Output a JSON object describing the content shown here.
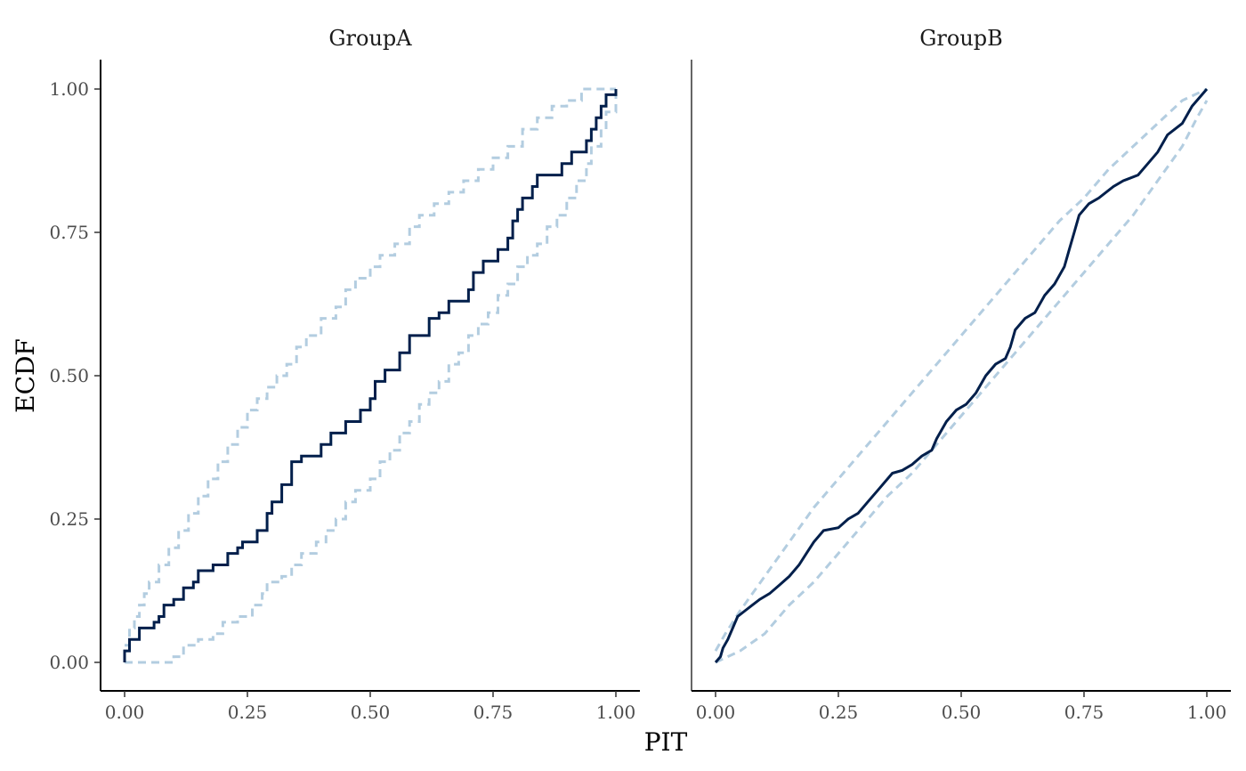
{
  "chart_data": {
    "type": "line",
    "xlabel": "PIT",
    "ylabel": "ECDF",
    "xlim": [
      0,
      1
    ],
    "ylim": [
      0,
      1
    ],
    "x_ticks": [
      "0.00",
      "0.25",
      "0.50",
      "0.75",
      "1.00"
    ],
    "y_ticks": [
      "0.00",
      "0.25",
      "0.50",
      "0.75",
      "1.00"
    ],
    "colors": {
      "ecdf": "#011f4b",
      "band": "#b3cde0"
    },
    "panels": [
      {
        "title": "GroupA",
        "series": [
          {
            "name": "ECDF",
            "step": true,
            "points": [
              [
                0,
                0
              ],
              [
                0,
                0.02
              ],
              [
                0.01,
                0.04
              ],
              [
                0.03,
                0.06
              ],
              [
                0.06,
                0.07
              ],
              [
                0.07,
                0.08
              ],
              [
                0.08,
                0.1
              ],
              [
                0.1,
                0.11
              ],
              [
                0.12,
                0.13
              ],
              [
                0.14,
                0.14
              ],
              [
                0.15,
                0.16
              ],
              [
                0.18,
                0.17
              ],
              [
                0.21,
                0.19
              ],
              [
                0.23,
                0.2
              ],
              [
                0.24,
                0.21
              ],
              [
                0.27,
                0.23
              ],
              [
                0.29,
                0.26
              ],
              [
                0.3,
                0.28
              ],
              [
                0.32,
                0.31
              ],
              [
                0.34,
                0.35
              ],
              [
                0.36,
                0.36
              ],
              [
                0.4,
                0.38
              ],
              [
                0.42,
                0.4
              ],
              [
                0.45,
                0.42
              ],
              [
                0.48,
                0.44
              ],
              [
                0.5,
                0.46
              ],
              [
                0.51,
                0.49
              ],
              [
                0.53,
                0.51
              ],
              [
                0.56,
                0.54
              ],
              [
                0.58,
                0.57
              ],
              [
                0.62,
                0.6
              ],
              [
                0.64,
                0.61
              ],
              [
                0.66,
                0.63
              ],
              [
                0.7,
                0.65
              ],
              [
                0.71,
                0.68
              ],
              [
                0.73,
                0.7
              ],
              [
                0.76,
                0.72
              ],
              [
                0.78,
                0.74
              ],
              [
                0.79,
                0.77
              ],
              [
                0.8,
                0.79
              ],
              [
                0.81,
                0.81
              ],
              [
                0.83,
                0.83
              ],
              [
                0.84,
                0.85
              ],
              [
                0.89,
                0.87
              ],
              [
                0.91,
                0.89
              ],
              [
                0.94,
                0.91
              ],
              [
                0.95,
                0.93
              ],
              [
                0.96,
                0.95
              ],
              [
                0.97,
                0.97
              ],
              [
                0.98,
                0.99
              ],
              [
                1,
                1
              ]
            ]
          },
          {
            "name": "upper",
            "step": true,
            "points": [
              [
                0,
                0.03
              ],
              [
                0.01,
                0.06
              ],
              [
                0.02,
                0.08
              ],
              [
                0.03,
                0.1
              ],
              [
                0.04,
                0.12
              ],
              [
                0.05,
                0.14
              ],
              [
                0.07,
                0.17
              ],
              [
                0.09,
                0.2
              ],
              [
                0.11,
                0.23
              ],
              [
                0.13,
                0.26
              ],
              [
                0.15,
                0.29
              ],
              [
                0.17,
                0.32
              ],
              [
                0.19,
                0.35
              ],
              [
                0.21,
                0.38
              ],
              [
                0.23,
                0.41
              ],
              [
                0.25,
                0.44
              ],
              [
                0.27,
                0.46
              ],
              [
                0.29,
                0.48
              ],
              [
                0.31,
                0.5
              ],
              [
                0.33,
                0.52
              ],
              [
                0.35,
                0.55
              ],
              [
                0.37,
                0.57
              ],
              [
                0.4,
                0.6
              ],
              [
                0.43,
                0.62
              ],
              [
                0.45,
                0.65
              ],
              [
                0.47,
                0.67
              ],
              [
                0.5,
                0.69
              ],
              [
                0.52,
                0.71
              ],
              [
                0.55,
                0.73
              ],
              [
                0.58,
                0.76
              ],
              [
                0.6,
                0.78
              ],
              [
                0.63,
                0.8
              ],
              [
                0.66,
                0.82
              ],
              [
                0.69,
                0.84
              ],
              [
                0.72,
                0.86
              ],
              [
                0.75,
                0.88
              ],
              [
                0.78,
                0.9
              ],
              [
                0.81,
                0.93
              ],
              [
                0.84,
                0.95
              ],
              [
                0.87,
                0.97
              ],
              [
                0.9,
                0.98
              ],
              [
                0.93,
                1
              ],
              [
                1,
                1
              ]
            ]
          },
          {
            "name": "lower",
            "step": true,
            "points": [
              [
                0,
                0
              ],
              [
                0.07,
                0
              ],
              [
                0.1,
                0.01
              ],
              [
                0.12,
                0.03
              ],
              [
                0.15,
                0.04
              ],
              [
                0.18,
                0.05
              ],
              [
                0.2,
                0.07
              ],
              [
                0.23,
                0.08
              ],
              [
                0.26,
                0.1
              ],
              [
                0.28,
                0.12
              ],
              [
                0.29,
                0.14
              ],
              [
                0.32,
                0.15
              ],
              [
                0.34,
                0.17
              ],
              [
                0.36,
                0.19
              ],
              [
                0.39,
                0.21
              ],
              [
                0.41,
                0.23
              ],
              [
                0.43,
                0.25
              ],
              [
                0.45,
                0.28
              ],
              [
                0.47,
                0.3
              ],
              [
                0.5,
                0.32
              ],
              [
                0.52,
                0.35
              ],
              [
                0.54,
                0.37
              ],
              [
                0.56,
                0.4
              ],
              [
                0.58,
                0.42
              ],
              [
                0.6,
                0.45
              ],
              [
                0.62,
                0.47
              ],
              [
                0.64,
                0.49
              ],
              [
                0.66,
                0.52
              ],
              [
                0.68,
                0.54
              ],
              [
                0.7,
                0.57
              ],
              [
                0.72,
                0.59
              ],
              [
                0.74,
                0.61
              ],
              [
                0.76,
                0.64
              ],
              [
                0.78,
                0.66
              ],
              [
                0.8,
                0.69
              ],
              [
                0.82,
                0.71
              ],
              [
                0.84,
                0.73
              ],
              [
                0.86,
                0.76
              ],
              [
                0.88,
                0.78
              ],
              [
                0.9,
                0.81
              ],
              [
                0.92,
                0.84
              ],
              [
                0.94,
                0.87
              ],
              [
                0.95,
                0.9
              ],
              [
                0.97,
                0.93
              ],
              [
                0.98,
                0.96
              ],
              [
                1,
                0.99
              ]
            ]
          }
        ]
      },
      {
        "title": "GroupB",
        "series": [
          {
            "name": "ECDF",
            "step": false,
            "points": [
              [
                0,
                0
              ],
              [
                0.01,
                0.01
              ],
              [
                0.015,
                0.025
              ],
              [
                0.025,
                0.04
              ],
              [
                0.035,
                0.06
              ],
              [
                0.045,
                0.08
              ],
              [
                0.06,
                0.09
              ],
              [
                0.075,
                0.1
              ],
              [
                0.09,
                0.11
              ],
              [
                0.11,
                0.12
              ],
              [
                0.13,
                0.135
              ],
              [
                0.15,
                0.15
              ],
              [
                0.17,
                0.17
              ],
              [
                0.185,
                0.19
              ],
              [
                0.2,
                0.21
              ],
              [
                0.22,
                0.23
              ],
              [
                0.25,
                0.235
              ],
              [
                0.27,
                0.25
              ],
              [
                0.29,
                0.26
              ],
              [
                0.31,
                0.28
              ],
              [
                0.33,
                0.3
              ],
              [
                0.36,
                0.33
              ],
              [
                0.38,
                0.335
              ],
              [
                0.4,
                0.345
              ],
              [
                0.42,
                0.36
              ],
              [
                0.44,
                0.37
              ],
              [
                0.45,
                0.39
              ],
              [
                0.47,
                0.42
              ],
              [
                0.49,
                0.44
              ],
              [
                0.51,
                0.45
              ],
              [
                0.53,
                0.47
              ],
              [
                0.55,
                0.5
              ],
              [
                0.57,
                0.52
              ],
              [
                0.59,
                0.53
              ],
              [
                0.6,
                0.55
              ],
              [
                0.61,
                0.58
              ],
              [
                0.63,
                0.6
              ],
              [
                0.65,
                0.61
              ],
              [
                0.67,
                0.64
              ],
              [
                0.69,
                0.66
              ],
              [
                0.71,
                0.69
              ],
              [
                0.72,
                0.72
              ],
              [
                0.73,
                0.75
              ],
              [
                0.74,
                0.78
              ],
              [
                0.76,
                0.8
              ],
              [
                0.78,
                0.81
              ],
              [
                0.81,
                0.83
              ],
              [
                0.83,
                0.84
              ],
              [
                0.86,
                0.85
              ],
              [
                0.88,
                0.87
              ],
              [
                0.9,
                0.89
              ],
              [
                0.92,
                0.92
              ],
              [
                0.95,
                0.94
              ],
              [
                0.97,
                0.97
              ],
              [
                0.99,
                0.99
              ],
              [
                1,
                1
              ]
            ]
          },
          {
            "name": "upper",
            "step": false,
            "points": [
              [
                0,
                0.02
              ],
              [
                0.02,
                0.05
              ],
              [
                0.05,
                0.09
              ],
              [
                0.1,
                0.15
              ],
              [
                0.15,
                0.21
              ],
              [
                0.2,
                0.27
              ],
              [
                0.25,
                0.32
              ],
              [
                0.3,
                0.37
              ],
              [
                0.35,
                0.42
              ],
              [
                0.4,
                0.47
              ],
              [
                0.45,
                0.52
              ],
              [
                0.5,
                0.57
              ],
              [
                0.55,
                0.62
              ],
              [
                0.6,
                0.67
              ],
              [
                0.65,
                0.72
              ],
              [
                0.7,
                0.77
              ],
              [
                0.75,
                0.81
              ],
              [
                0.8,
                0.86
              ],
              [
                0.85,
                0.9
              ],
              [
                0.9,
                0.94
              ],
              [
                0.95,
                0.98
              ],
              [
                1,
                1
              ]
            ]
          },
          {
            "name": "lower",
            "step": false,
            "points": [
              [
                0,
                0
              ],
              [
                0.05,
                0.02
              ],
              [
                0.1,
                0.05
              ],
              [
                0.15,
                0.1
              ],
              [
                0.2,
                0.14
              ],
              [
                0.25,
                0.19
              ],
              [
                0.3,
                0.24
              ],
              [
                0.35,
                0.29
              ],
              [
                0.4,
                0.33
              ],
              [
                0.45,
                0.38
              ],
              [
                0.5,
                0.43
              ],
              [
                0.55,
                0.48
              ],
              [
                0.6,
                0.53
              ],
              [
                0.65,
                0.58
              ],
              [
                0.7,
                0.63
              ],
              [
                0.75,
                0.68
              ],
              [
                0.8,
                0.73
              ],
              [
                0.85,
                0.78
              ],
              [
                0.9,
                0.84
              ],
              [
                0.95,
                0.9
              ],
              [
                0.98,
                0.95
              ],
              [
                1,
                0.98
              ]
            ]
          }
        ]
      }
    ]
  }
}
